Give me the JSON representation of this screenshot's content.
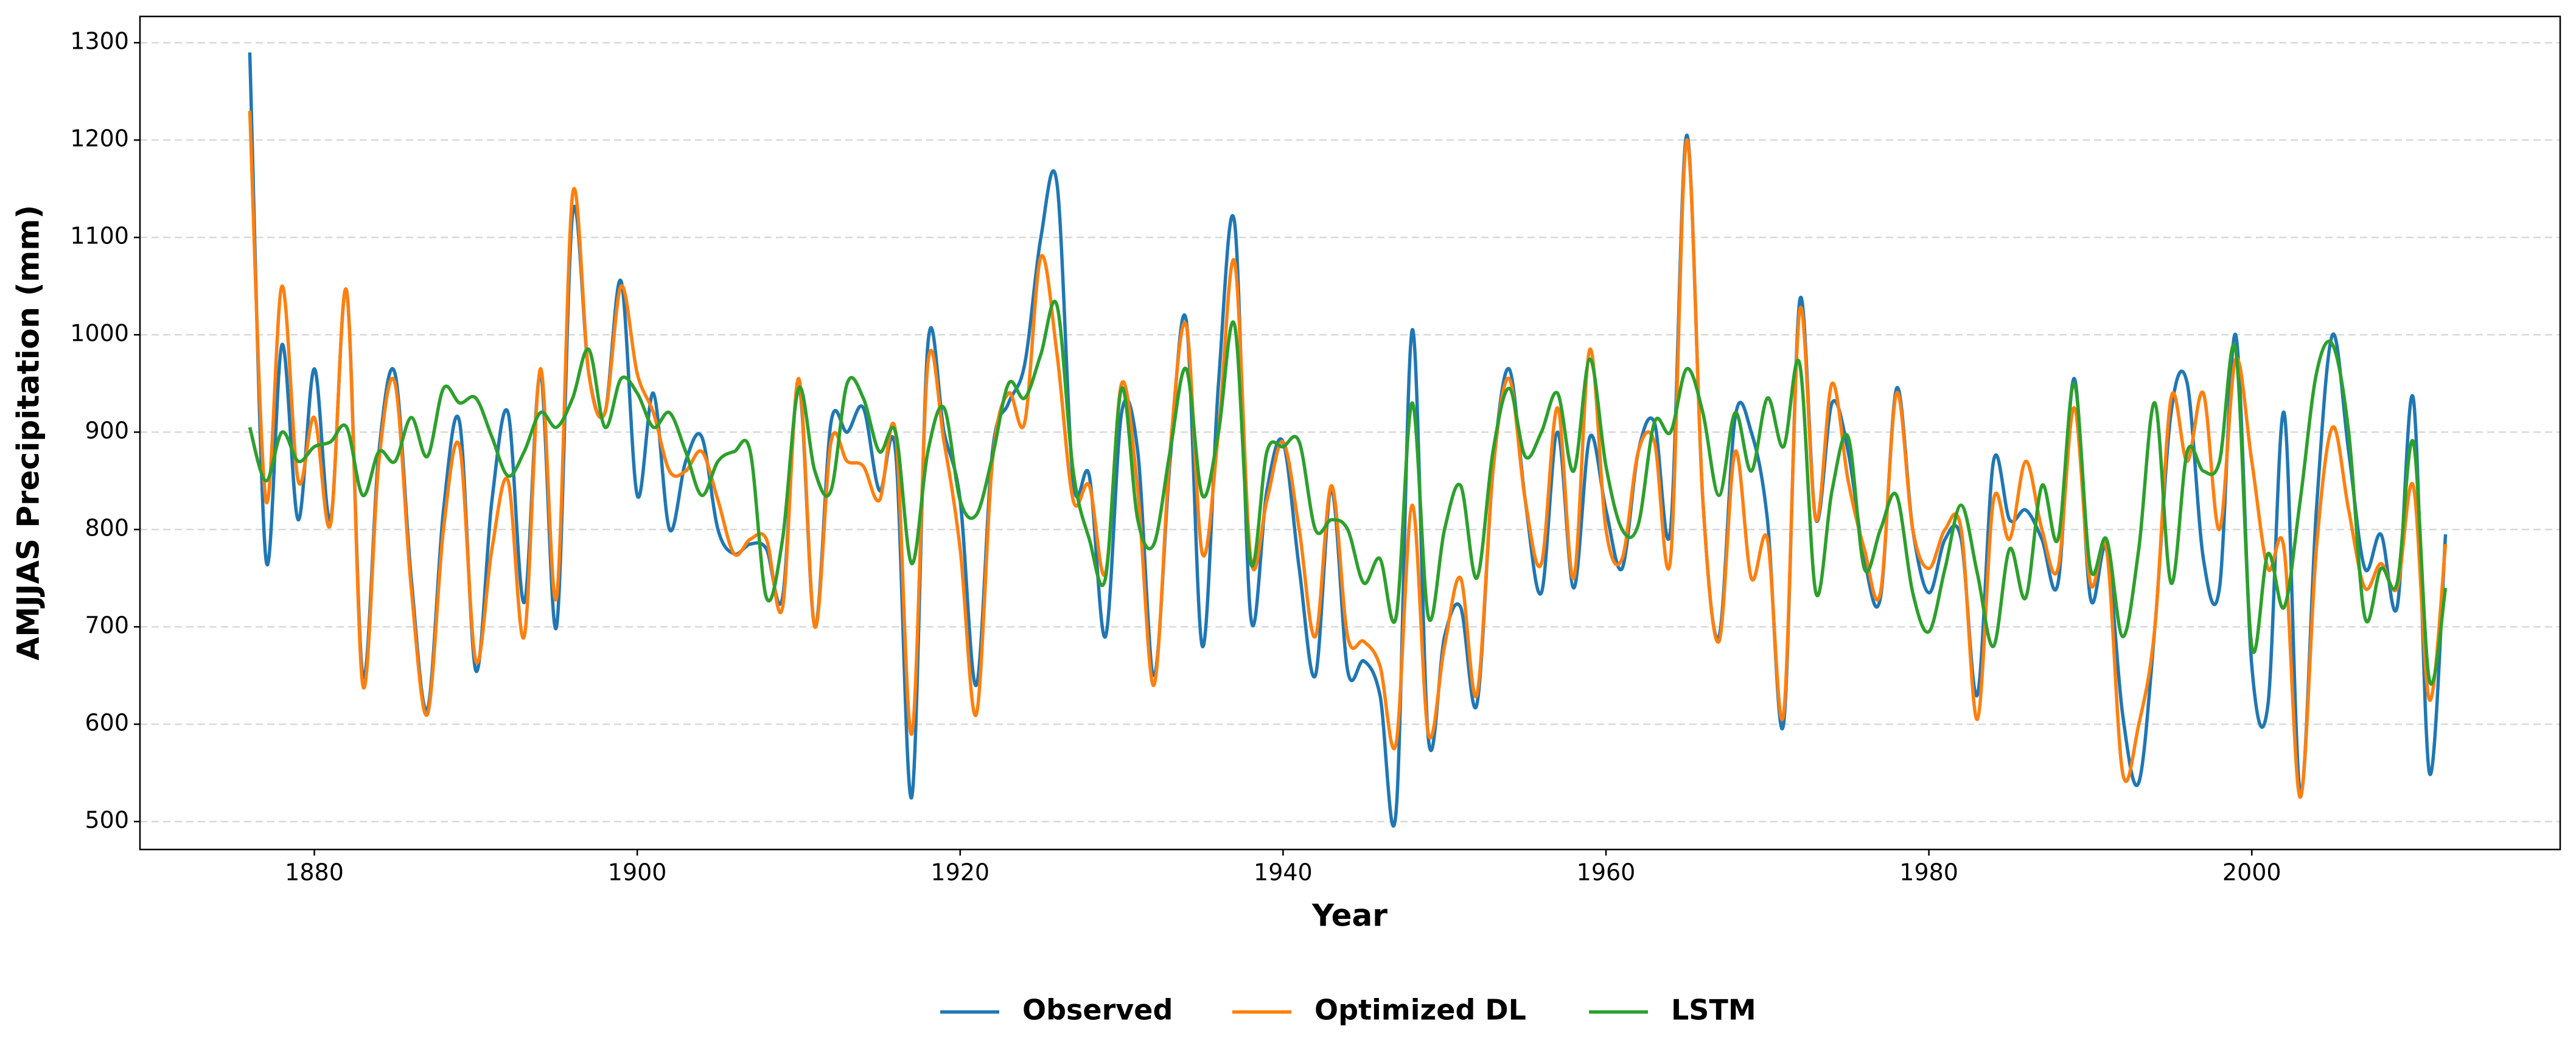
{
  "chart_data": {
    "type": "line",
    "xlabel": "Year",
    "ylabel": "AMJJAS Precipitation (mm)",
    "x": [
      1876,
      1877,
      1878,
      1879,
      1880,
      1881,
      1882,
      1883,
      1884,
      1885,
      1886,
      1887,
      1888,
      1889,
      1890,
      1891,
      1892,
      1893,
      1894,
      1895,
      1896,
      1897,
      1898,
      1899,
      1900,
      1901,
      1902,
      1903,
      1904,
      1905,
      1906,
      1907,
      1908,
      1909,
      1910,
      1911,
      1912,
      1913,
      1914,
      1915,
      1916,
      1917,
      1918,
      1919,
      1920,
      1921,
      1922,
      1923,
      1924,
      1925,
      1926,
      1927,
      1928,
      1929,
      1930,
      1931,
      1932,
      1933,
      1934,
      1935,
      1936,
      1937,
      1938,
      1939,
      1940,
      1941,
      1942,
      1943,
      1944,
      1945,
      1946,
      1947,
      1948,
      1949,
      1950,
      1951,
      1952,
      1953,
      1954,
      1955,
      1956,
      1957,
      1958,
      1959,
      1960,
      1961,
      1962,
      1963,
      1964,
      1965,
      1966,
      1967,
      1968,
      1969,
      1970,
      1971,
      1972,
      1973,
      1974,
      1975,
      1976,
      1977,
      1978,
      1979,
      1980,
      1981,
      1982,
      1983,
      1984,
      1985,
      1986,
      1987,
      1988,
      1989,
      1990,
      1991,
      1992,
      1993,
      1994,
      1995,
      1996,
      1997,
      1998,
      1999,
      2000,
      2001,
      2002,
      2003,
      2004,
      2005,
      2006,
      2007,
      2008,
      2009,
      2010,
      2011,
      2012
    ],
    "series": [
      {
        "name": "Observed",
        "color": "#1f77b4",
        "values": [
          1290,
          770,
          990,
          810,
          965,
          810,
          1045,
          650,
          880,
          960,
          750,
          615,
          820,
          910,
          655,
          830,
          920,
          725,
          960,
          700,
          1125,
          960,
          920,
          1055,
          835,
          940,
          800,
          870,
          895,
          800,
          775,
          785,
          780,
          730,
          950,
          700,
          910,
          900,
          925,
          840,
          880,
          525,
          990,
          900,
          830,
          640,
          880,
          930,
          970,
          1100,
          1155,
          850,
          855,
          690,
          920,
          880,
          650,
          870,
          1015,
          680,
          950,
          1115,
          710,
          840,
          890,
          760,
          650,
          840,
          655,
          665,
          630,
          510,
          1005,
          585,
          690,
          720,
          620,
          860,
          965,
          830,
          735,
          900,
          740,
          895,
          820,
          760,
          880,
          910,
          800,
          1205,
          830,
          690,
          915,
          900,
          810,
          600,
          1035,
          810,
          930,
          880,
          770,
          730,
          945,
          800,
          735,
          790,
          790,
          630,
          870,
          810,
          820,
          790,
          745,
          955,
          730,
          780,
          610,
          540,
          700,
          920,
          950,
          770,
          740,
          1000,
          660,
          620,
          920,
          530,
          820,
          1000,
          880,
          760,
          795,
          720,
          935,
          550,
          795
        ]
      },
      {
        "name": "Optimized DL",
        "color": "#ff7f0e",
        "values": [
          1230,
          830,
          1050,
          850,
          915,
          805,
          1045,
          640,
          870,
          950,
          740,
          610,
          800,
          885,
          665,
          780,
          850,
          690,
          965,
          730,
          1145,
          960,
          920,
          1050,
          960,
          920,
          860,
          860,
          880,
          830,
          775,
          790,
          790,
          720,
          955,
          700,
          890,
          870,
          865,
          830,
          900,
          590,
          970,
          890,
          780,
          610,
          870,
          940,
          910,
          1080,
          980,
          830,
          845,
          755,
          950,
          840,
          640,
          880,
          1010,
          775,
          900,
          1075,
          770,
          830,
          890,
          800,
          690,
          845,
          690,
          685,
          660,
          580,
          825,
          590,
          680,
          750,
          630,
          860,
          955,
          830,
          765,
          925,
          750,
          985,
          800,
          770,
          880,
          890,
          770,
          1200,
          830,
          685,
          880,
          750,
          790,
          610,
          1025,
          810,
          950,
          850,
          780,
          735,
          940,
          800,
          760,
          800,
          800,
          605,
          830,
          790,
          870,
          800,
          760,
          925,
          745,
          780,
          550,
          600,
          700,
          935,
          870,
          940,
          800,
          975,
          870,
          760,
          780,
          525,
          780,
          905,
          820,
          740,
          765,
          740,
          845,
          625,
          785
        ]
      },
      {
        "name": "LSTM",
        "color": "#2ca02c",
        "values": [
          905,
          850,
          900,
          870,
          885,
          890,
          905,
          835,
          880,
          870,
          915,
          875,
          945,
          930,
          935,
          895,
          855,
          880,
          920,
          905,
          935,
          985,
          905,
          955,
          940,
          905,
          920,
          880,
          835,
          870,
          880,
          880,
          730,
          790,
          945,
          860,
          840,
          950,
          935,
          880,
          900,
          765,
          880,
          925,
          830,
          815,
          875,
          950,
          935,
          980,
          1030,
          860,
          790,
          750,
          945,
          810,
          785,
          880,
          965,
          835,
          900,
          1010,
          765,
          880,
          885,
          890,
          800,
          810,
          800,
          745,
          770,
          710,
          930,
          710,
          800,
          845,
          750,
          880,
          945,
          875,
          900,
          940,
          860,
          975,
          865,
          800,
          805,
          910,
          900,
          965,
          920,
          835,
          920,
          860,
          935,
          885,
          970,
          735,
          840,
          895,
          760,
          800,
          835,
          735,
          695,
          760,
          825,
          755,
          680,
          780,
          730,
          845,
          790,
          950,
          760,
          790,
          690,
          780,
          930,
          745,
          880,
          860,
          870,
          985,
          680,
          775,
          720,
          830,
          960,
          990,
          900,
          710,
          760,
          745,
          890,
          645,
          740
        ]
      }
    ],
    "xlim": [
      1869.2,
      2019.1
    ],
    "ylim": [
      471.3,
      1327
    ],
    "xticks": [
      1880,
      1900,
      1920,
      1940,
      1960,
      1980,
      2000
    ],
    "yticks": [
      500,
      600,
      700,
      800,
      900,
      1000,
      1100,
      1200,
      1300
    ],
    "grid": true,
    "legend": "bottom"
  }
}
